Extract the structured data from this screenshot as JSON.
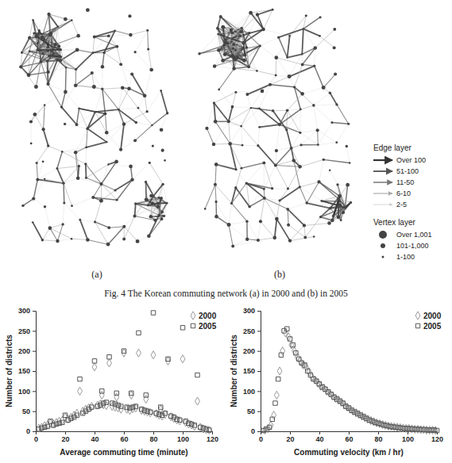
{
  "figure": {
    "panels": [
      {
        "label": "(a)"
      },
      {
        "label": "(b)"
      }
    ],
    "legend": {
      "edge_title": "Edge layer",
      "edge_items": [
        "Over 100",
        "51-100",
        "11-50",
        "6-10",
        "2-5"
      ],
      "vertex_title": "Vertex layer",
      "vertex_items": [
        "Over 1,001",
        "101-1,000",
        "1-100"
      ]
    },
    "caption": "Fig. 4 The Korean commuting network (a) in 2000 and (b) in 2005"
  },
  "chart_data": [
    {
      "type": "scatter",
      "x_label": "Average commuting time (minute)",
      "y_label": "Number of districts",
      "xlim": [
        0,
        120
      ],
      "xticks": [
        0,
        20,
        40,
        60,
        80,
        100,
        120
      ],
      "ylim": [
        0,
        300
      ],
      "yticks": [
        0,
        50,
        100,
        150,
        200,
        250,
        300
      ],
      "grid": false,
      "legend": "upper right",
      "series": [
        {
          "name": "2000",
          "color": "#9a9a9a",
          "marker": "diamond",
          "x": [
            2,
            4,
            6,
            8,
            10,
            12,
            14,
            16,
            18,
            20,
            22,
            24,
            26,
            28,
            30,
            32,
            34,
            36,
            38,
            40,
            42,
            44,
            46,
            48,
            50,
            52,
            54,
            56,
            58,
            60,
            62,
            64,
            66,
            68,
            70,
            72,
            74,
            76,
            78,
            80,
            82,
            84,
            86,
            88,
            90,
            92,
            94,
            96,
            98,
            100,
            102,
            104,
            106,
            108,
            110,
            112,
            114,
            116,
            118,
            45,
            55,
            65,
            75,
            85
          ],
          "values": [
            8,
            10,
            14,
            16,
            20,
            18,
            22,
            25,
            27,
            35,
            30,
            35,
            40,
            45,
            100,
            50,
            55,
            58,
            62,
            160,
            65,
            68,
            66,
            64,
            170,
            62,
            60,
            58,
            55,
            195,
            55,
            52,
            56,
            58,
            195,
            52,
            50,
            48,
            46,
            190,
            44,
            40,
            38,
            42,
            175,
            36,
            32,
            28,
            26,
            180,
            22,
            18,
            16,
            12,
            75,
            10,
            6,
            4,
            3,
            90,
            85,
            90,
            80,
            55
          ]
        },
        {
          "name": "2005",
          "color": "#555555",
          "marker": "square",
          "x": [
            2,
            4,
            6,
            8,
            10,
            12,
            14,
            16,
            18,
            20,
            22,
            24,
            26,
            28,
            30,
            32,
            34,
            36,
            38,
            40,
            42,
            44,
            46,
            48,
            50,
            52,
            54,
            56,
            58,
            60,
            62,
            64,
            66,
            68,
            70,
            72,
            74,
            76,
            78,
            80,
            82,
            84,
            86,
            88,
            90,
            92,
            94,
            96,
            98,
            100,
            102,
            104,
            106,
            108,
            110,
            112,
            114,
            116,
            118,
            45,
            55,
            65,
            75,
            85
          ],
          "values": [
            5,
            8,
            10,
            12,
            25,
            15,
            18,
            20,
            22,
            40,
            28,
            32,
            35,
            40,
            130,
            45,
            50,
            55,
            60,
            175,
            62,
            65,
            70,
            72,
            185,
            70,
            68,
            65,
            62,
            200,
            60,
            58,
            60,
            62,
            245,
            55,
            52,
            50,
            48,
            295,
            45,
            42,
            40,
            45,
            180,
            38,
            35,
            30,
            28,
            258,
            25,
            20,
            18,
            15,
            140,
            10,
            8,
            5,
            3,
            100,
            95,
            95,
            90,
            60
          ]
        }
      ]
    },
    {
      "type": "scatter",
      "x_label": "Commuting velocity (km / hr)",
      "y_label": "Number of districts",
      "xlim": [
        0,
        120
      ],
      "xticks": [
        0,
        20,
        40,
        60,
        80,
        100,
        120
      ],
      "ylim": [
        0,
        300
      ],
      "yticks": [
        0,
        50,
        100,
        150,
        200,
        250,
        300
      ],
      "grid": false,
      "legend": "upper right",
      "series": [
        {
          "name": "2000",
          "color": "#9a9a9a",
          "marker": "diamond",
          "x": [
            3,
            5,
            7,
            9,
            11,
            13,
            15,
            17,
            19,
            21,
            23,
            25,
            27,
            29,
            31,
            33,
            35,
            37,
            39,
            41,
            43,
            45,
            47,
            49,
            51,
            53,
            55,
            57,
            59,
            61,
            63,
            65,
            67,
            69,
            71,
            73,
            75,
            77,
            79,
            81,
            83,
            85,
            87,
            89,
            91,
            93,
            95,
            97,
            99,
            101,
            103,
            105,
            107,
            109,
            111,
            113,
            115,
            117,
            119
          ],
          "values": [
            3,
            6,
            15,
            40,
            90,
            150,
            200,
            245,
            235,
            215,
            200,
            185,
            175,
            165,
            160,
            148,
            135,
            128,
            120,
            112,
            108,
            100,
            95,
            88,
            82,
            78,
            72,
            66,
            60,
            55,
            50,
            46,
            42,
            38,
            34,
            30,
            27,
            24,
            21,
            19,
            17,
            15,
            13,
            12,
            11,
            10,
            9,
            8,
            7,
            7,
            6,
            5,
            5,
            4,
            4,
            3,
            3,
            3,
            2
          ]
        },
        {
          "name": "2005",
          "color": "#555555",
          "marker": "square",
          "x": [
            2,
            4,
            6,
            8,
            10,
            12,
            14,
            16,
            18,
            20,
            22,
            24,
            26,
            28,
            30,
            32,
            34,
            36,
            38,
            40,
            42,
            44,
            46,
            48,
            50,
            52,
            54,
            56,
            58,
            60,
            62,
            64,
            66,
            68,
            70,
            72,
            74,
            76,
            78,
            80,
            82,
            84,
            86,
            88,
            90,
            92,
            94,
            96,
            98,
            100,
            102,
            104,
            106,
            108,
            110,
            112,
            114,
            116,
            118,
            120
          ],
          "values": [
            2,
            5,
            10,
            30,
            70,
            130,
            190,
            250,
            255,
            230,
            215,
            195,
            180,
            170,
            165,
            150,
            140,
            130,
            125,
            118,
            110,
            105,
            98,
            92,
            85,
            80,
            75,
            70,
            62,
            58,
            52,
            48,
            44,
            40,
            36,
            32,
            28,
            25,
            22,
            20,
            18,
            15,
            14,
            12,
            11,
            10,
            9,
            8,
            7,
            7,
            6,
            6,
            5,
            5,
            4,
            4,
            3,
            3,
            3,
            2
          ]
        }
      ]
    }
  ]
}
